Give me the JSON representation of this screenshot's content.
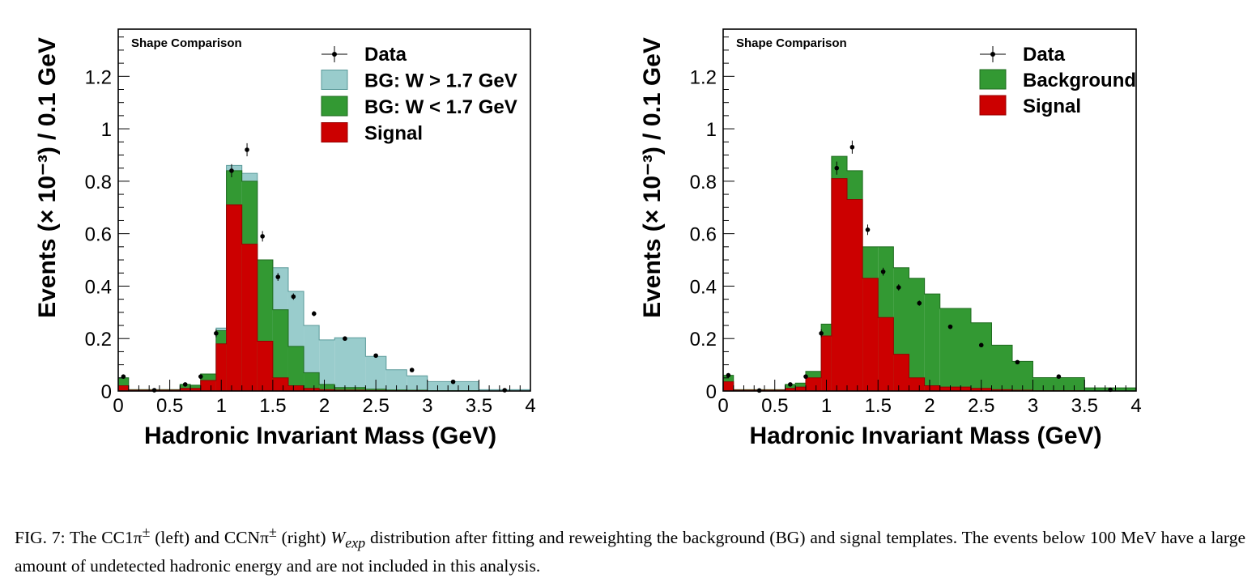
{
  "chart_data": [
    {
      "type": "bar",
      "stacked": true,
      "histogram": true,
      "panel": "left",
      "annotation": "Shape Comparison",
      "xlabel": "Hadronic Invariant Mass (GeV)",
      "ylabel": "Events (× 10⁻³) / 0.1 GeV",
      "xlim": [
        0,
        4
      ],
      "ylim": [
        0,
        1.38
      ],
      "x_ticks": [
        "0",
        "0.5",
        "1",
        "1.5",
        "2",
        "2.5",
        "3",
        "3.5",
        "4"
      ],
      "y_ticks": [
        "0",
        "0.2",
        "0.4",
        "0.6",
        "0.8",
        "1",
        "1.2"
      ],
      "legend_position": "top-right",
      "bin_edges": [
        0,
        0.1,
        0.3,
        0.6,
        0.7,
        0.8,
        0.95,
        1.05,
        1.2,
        1.35,
        1.5,
        1.65,
        1.8,
        1.95,
        2.1,
        2.4,
        2.6,
        2.8,
        3.0,
        3.5,
        4.0
      ],
      "series": [
        {
          "name": "Signal",
          "color": "#cc0000",
          "values": [
            0.02,
            0.003,
            0.003,
            0.01,
            0.01,
            0.04,
            0.18,
            0.71,
            0.56,
            0.19,
            0.05,
            0.02,
            0.01,
            0.005,
            0.003,
            0.002,
            0.001,
            0.001,
            0,
            0
          ]
        },
        {
          "name": "BG: W < 1.7 GeV",
          "color": "#339933",
          "values": [
            0.03,
            0.002,
            0.002,
            0.015,
            0.012,
            0.025,
            0.05,
            0.13,
            0.24,
            0.31,
            0.26,
            0.15,
            0.06,
            0.02,
            0.01,
            0.005,
            0.003,
            0.002,
            0.001,
            0
          ]
        },
        {
          "name": "BG: W > 1.7 GeV",
          "color": "#99cccc",
          "values": [
            0,
            0,
            0,
            0,
            0,
            0,
            0.01,
            0.02,
            0.03,
            0,
            0.16,
            0.21,
            0.18,
            0.17,
            0.19,
            0.125,
            0.077,
            0.055,
            0.035,
            0.005
          ]
        }
      ],
      "data_points": {
        "name": "Data",
        "x": [
          0.05,
          0.35,
          0.65,
          0.8,
          0.95,
          1.1,
          1.25,
          1.4,
          1.55,
          1.7,
          1.9,
          2.2,
          2.5,
          2.85,
          3.25,
          3.75
        ],
        "y": [
          0.055,
          0.003,
          0.025,
          0.055,
          0.22,
          0.84,
          0.92,
          0.59,
          0.435,
          0.36,
          0.295,
          0.2,
          0.135,
          0.08,
          0.035,
          0.003
        ],
        "err": [
          0.008,
          0.003,
          0.006,
          0.008,
          0.015,
          0.025,
          0.025,
          0.02,
          0.015,
          0.012,
          0.01,
          0.008,
          0.007,
          0.005,
          0.004,
          0.002
        ]
      }
    },
    {
      "type": "bar",
      "stacked": true,
      "histogram": true,
      "panel": "right",
      "annotation": "Shape Comparison",
      "xlabel": "Hadronic Invariant Mass (GeV)",
      "ylabel": "Events (× 10⁻³) / 0.1 GeV",
      "xlim": [
        0,
        4
      ],
      "ylim": [
        0,
        1.38
      ],
      "x_ticks": [
        "0",
        "0.5",
        "1",
        "1.5",
        "2",
        "2.5",
        "3",
        "3.5",
        "4"
      ],
      "y_ticks": [
        "0",
        "0.2",
        "0.4",
        "0.6",
        "0.8",
        "1",
        "1.2"
      ],
      "legend_position": "top-right",
      "bin_edges": [
        0,
        0.1,
        0.3,
        0.6,
        0.7,
        0.8,
        0.95,
        1.05,
        1.2,
        1.35,
        1.5,
        1.65,
        1.8,
        1.95,
        2.1,
        2.4,
        2.6,
        2.8,
        3.0,
        3.5,
        4.0
      ],
      "series": [
        {
          "name": "Signal",
          "color": "#cc0000",
          "values": [
            0.035,
            0.003,
            0.003,
            0.01,
            0.015,
            0.05,
            0.21,
            0.81,
            0.73,
            0.43,
            0.28,
            0.14,
            0.05,
            0.02,
            0.015,
            0.01,
            0.005,
            0.003,
            0.001,
            0
          ]
        },
        {
          "name": "Background",
          "color": "#339933",
          "values": [
            0.025,
            0.002,
            0.002,
            0.015,
            0.015,
            0.025,
            0.045,
            0.085,
            0.11,
            0.12,
            0.27,
            0.33,
            0.38,
            0.35,
            0.3,
            0.25,
            0.17,
            0.11,
            0.05,
            0.012
          ]
        }
      ],
      "data_points": {
        "name": "Data",
        "x": [
          0.05,
          0.35,
          0.65,
          0.8,
          0.95,
          1.1,
          1.25,
          1.4,
          1.55,
          1.7,
          1.9,
          2.2,
          2.5,
          2.85,
          3.25,
          3.75
        ],
        "y": [
          0.06,
          0.002,
          0.025,
          0.055,
          0.22,
          0.85,
          0.93,
          0.615,
          0.455,
          0.395,
          0.335,
          0.245,
          0.175,
          0.11,
          0.055,
          0.005
        ],
        "err": [
          0.008,
          0.003,
          0.006,
          0.008,
          0.015,
          0.025,
          0.025,
          0.02,
          0.015,
          0.012,
          0.01,
          0.008,
          0.007,
          0.005,
          0.004,
          0.002
        ]
      }
    }
  ],
  "caption": {
    "fig_label": "FIG. 7:",
    "text_1": "The CC1π",
    "sup_1": "±",
    "text_2": " (left) and CCNπ",
    "sup_2": "±",
    "text_3": " (right) ",
    "w_main": "W",
    "w_sub": "exp",
    "text_4": " distribution after fitting and reweighting the background (BG) and signal templates. The events below 100 MeV have a large amount of undetected hadronic energy and are not included in this analysis."
  }
}
